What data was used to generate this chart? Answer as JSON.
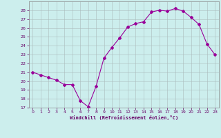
{
  "x": [
    0,
    1,
    2,
    3,
    4,
    5,
    6,
    7,
    8,
    9,
    10,
    11,
    12,
    13,
    14,
    15,
    16,
    17,
    18,
    19,
    20,
    21,
    22,
    23
  ],
  "y": [
    21.0,
    20.7,
    20.4,
    20.1,
    19.6,
    19.6,
    17.8,
    17.1,
    19.4,
    22.6,
    23.8,
    24.9,
    26.1,
    26.5,
    26.7,
    27.8,
    28.0,
    27.9,
    28.2,
    27.9,
    27.2,
    26.4,
    24.2,
    23.0
  ],
  "line_color": "#990099",
  "marker": "D",
  "marker_size": 2,
  "bg_color": "#cceeed",
  "grid_color": "#aabbbb",
  "xlabel": "Windchill (Refroidissement éolien,°C)",
  "xlabel_color": "#660066",
  "tick_color": "#660066",
  "ylim": [
    17,
    29
  ],
  "xlim": [
    -0.5,
    23.5
  ],
  "yticks": [
    17,
    18,
    19,
    20,
    21,
    22,
    23,
    24,
    25,
    26,
    27,
    28
  ],
  "xticks": [
    0,
    1,
    2,
    3,
    4,
    5,
    6,
    7,
    8,
    9,
    10,
    11,
    12,
    13,
    14,
    15,
    16,
    17,
    18,
    19,
    20,
    21,
    22,
    23
  ]
}
